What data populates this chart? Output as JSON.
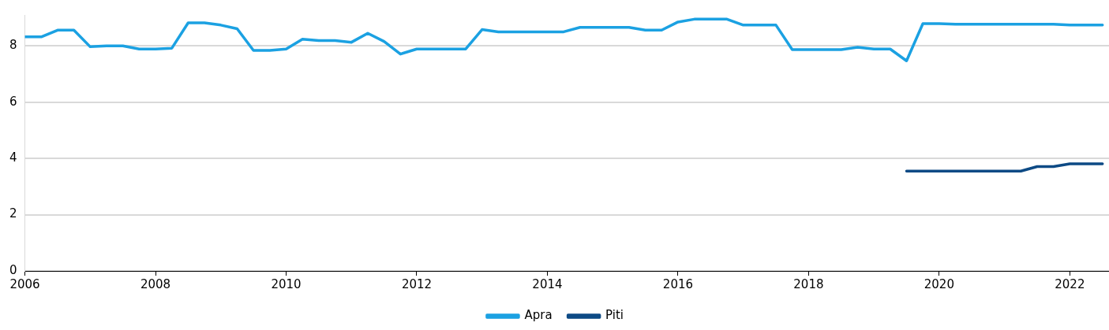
{
  "chart_data": {
    "type": "line",
    "x": [
      2006,
      2006.25,
      2006.5,
      2006.75,
      2007,
      2007.25,
      2007.5,
      2007.75,
      2008,
      2008.25,
      2008.5,
      2008.75,
      2009,
      2009.25,
      2009.5,
      2009.75,
      2010,
      2010.25,
      2010.5,
      2010.75,
      2011,
      2011.25,
      2011.5,
      2011.75,
      2012,
      2012.25,
      2012.5,
      2012.75,
      2013,
      2013.25,
      2013.5,
      2013.75,
      2014,
      2014.25,
      2014.5,
      2014.75,
      2015,
      2015.25,
      2015.5,
      2015.75,
      2016,
      2016.25,
      2016.5,
      2016.75,
      2017,
      2017.25,
      2017.5,
      2017.75,
      2018,
      2018.25,
      2018.5,
      2018.75,
      2019,
      2019.25,
      2019.5,
      2019.75,
      2020,
      2020.25,
      2020.5,
      2020.75,
      2021,
      2021.25,
      2021.5,
      2021.75,
      2022,
      2022.25,
      2022.5
    ],
    "series": [
      {
        "name": "Apra",
        "color": "#1ba1e2",
        "values": [
          8.32,
          8.32,
          8.56,
          8.56,
          7.97,
          8.0,
          8.0,
          7.89,
          7.89,
          7.92,
          8.82,
          8.82,
          8.74,
          8.61,
          7.84,
          7.84,
          7.89,
          8.24,
          8.19,
          8.19,
          8.13,
          8.45,
          8.16,
          7.71,
          7.89,
          7.89,
          7.89,
          7.89,
          8.58,
          8.5,
          8.5,
          8.5,
          8.5,
          8.5,
          8.66,
          8.66,
          8.66,
          8.66,
          8.56,
          8.56,
          8.85,
          8.95,
          8.95,
          8.95,
          8.74,
          8.74,
          8.74,
          7.87,
          7.87,
          7.87,
          7.87,
          7.95,
          7.89,
          7.89,
          7.47,
          8.79,
          8.79,
          8.77,
          8.77,
          8.77,
          8.77,
          8.77,
          8.77,
          8.77,
          8.74,
          8.74,
          8.74
        ]
      },
      {
        "name": "Piti",
        "color": "#0d4a85",
        "values": [
          null,
          null,
          null,
          null,
          null,
          null,
          null,
          null,
          null,
          null,
          null,
          null,
          null,
          null,
          null,
          null,
          null,
          null,
          null,
          null,
          null,
          null,
          null,
          null,
          null,
          null,
          null,
          null,
          null,
          null,
          null,
          null,
          null,
          null,
          null,
          null,
          null,
          null,
          null,
          null,
          null,
          null,
          null,
          null,
          null,
          null,
          null,
          null,
          null,
          null,
          null,
          null,
          null,
          null,
          3.55,
          3.55,
          3.55,
          3.55,
          3.55,
          3.55,
          3.55,
          3.55,
          3.71,
          3.71,
          3.81,
          3.81,
          3.81
        ]
      }
    ],
    "xlim": [
      2006,
      2022.6
    ],
    "xticks": [
      2006,
      2008,
      2010,
      2012,
      2014,
      2016,
      2018,
      2020,
      2022
    ],
    "ylim": [
      0,
      9.1
    ],
    "yticks": [
      0,
      2,
      4,
      6,
      8
    ],
    "grid": "y",
    "legend": "bottom",
    "marker": "none",
    "line_style": "solid"
  }
}
